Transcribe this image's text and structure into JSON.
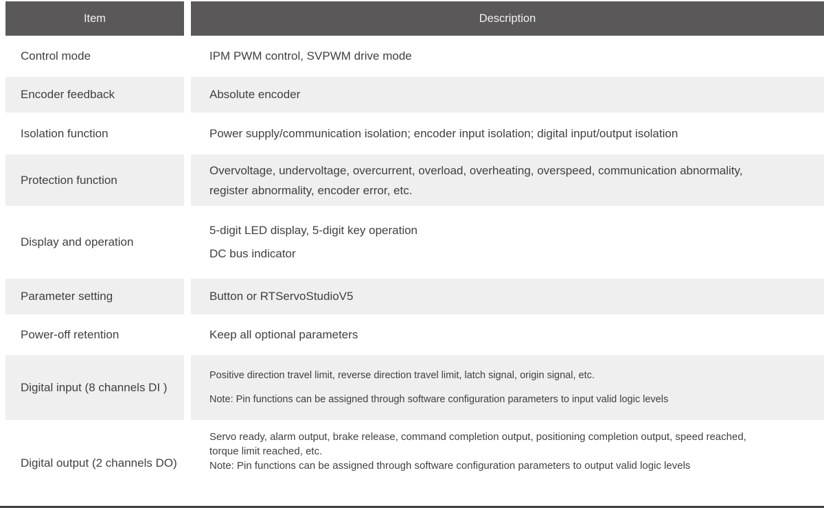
{
  "table": {
    "header": {
      "item": "Item",
      "description": "Description"
    },
    "rows": [
      {
        "item": "Control mode",
        "desc1": "IPM PWM control, SVPWM drive mode"
      },
      {
        "item": "Encoder feedback",
        "desc1": "Absolute encoder"
      },
      {
        "item": "Isolation function",
        "desc1": "Power supply/communication isolation; encoder input isolation; digital input/output isolation"
      },
      {
        "item": "Protection function",
        "desc1": "Overvoltage, undervoltage, overcurrent, overload, overheating, overspeed, communication abnormality, register abnormality, encoder error, etc."
      },
      {
        "item": "Display and operation",
        "desc1": "5-digit LED display, 5-digit key operation",
        "desc2": "DC bus indicator"
      },
      {
        "item": "Parameter setting",
        "desc1": "Button or RTServoStudioV5"
      },
      {
        "item": "Power-off retention",
        "desc1": "Keep all optional parameters"
      },
      {
        "item": "Digital input (8 channels DI )",
        "desc1": "Positive direction travel limit, reverse direction travel limit, latch signal, origin signal, etc.",
        "desc2": "Note: Pin functions can be assigned through software configuration parameters to input valid logic levels"
      },
      {
        "item": "Digital output (2 channels DO)",
        "desc1": "Servo ready, alarm output, brake release, command completion output, positioning completion output, speed reached, torque limit reached, etc.",
        "desc2": "Note: Pin functions can be assigned through software configuration parameters to output valid logic levels"
      }
    ],
    "colors": {
      "header_bg": "#5a5858",
      "header_text": "#f2f2f2",
      "alt_row_bg": "#efefef",
      "body_text": "#3f3f3f",
      "bottom_rule": "#3d3d3d"
    }
  }
}
